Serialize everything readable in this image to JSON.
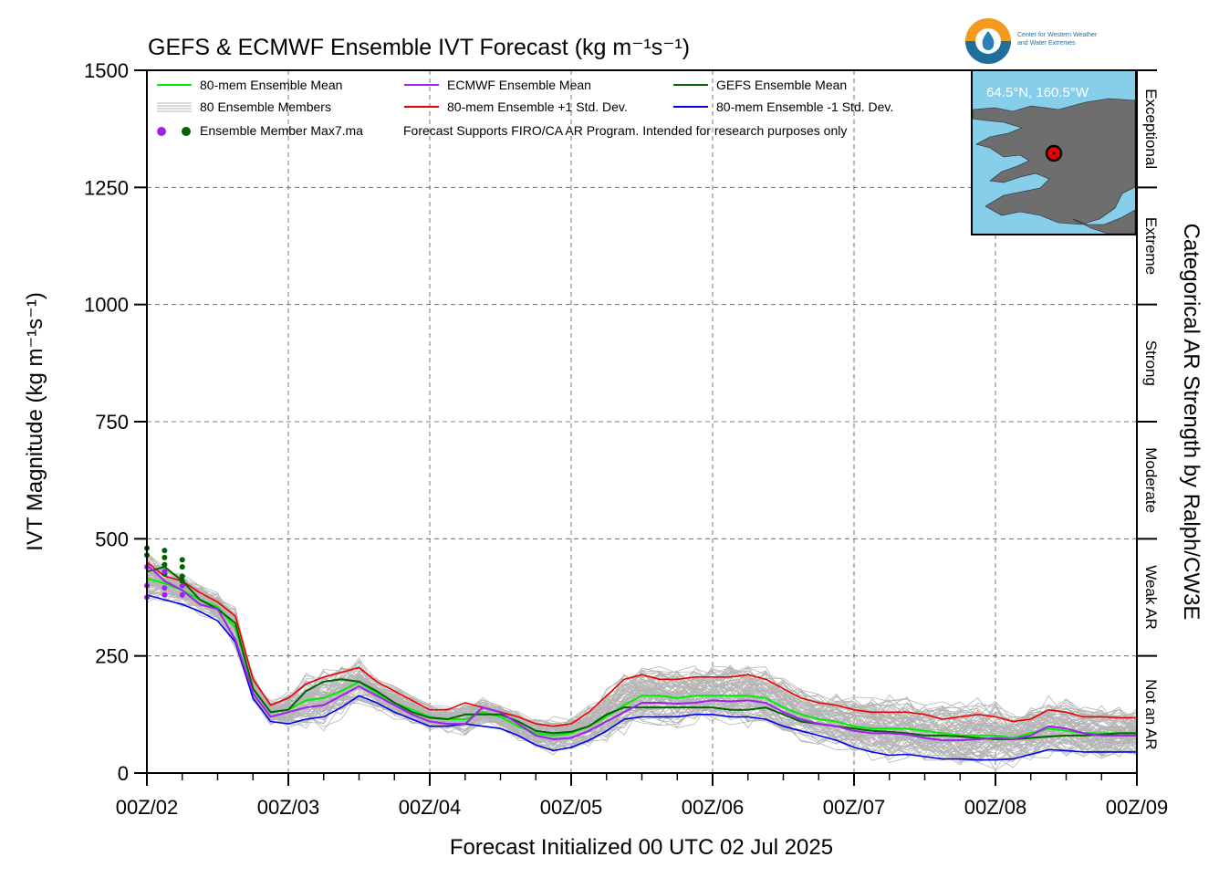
{
  "title": "GEFS & ECMWF Ensemble IVT Forecast (kg m⁻¹s⁻¹)",
  "ylabel": "IVT Magnitude (kg m⁻¹s⁻¹)",
  "xlabel": "Forecast Initialized 00 UTC 02 Jul 2025",
  "right_label": "Categorical AR Strength by Ralph/CW3E",
  "logo": {
    "line1": "Center for Western Weather",
    "line2": "and Water Extremes"
  },
  "inset": {
    "label": "64.5°N, 160.5°W",
    "ocean_color": "#87ceeb",
    "land_color": "#6e6e6e"
  },
  "note": "Forecast Supports FIRO/CA AR Program. Intended for research purposes only",
  "max_label": "Ensemble Member Max7.ma",
  "categories": [
    {
      "label": "Not an AR",
      "range": [
        0,
        250
      ]
    },
    {
      "label": "Weak AR",
      "range": [
        250,
        500
      ]
    },
    {
      "label": "Moderate",
      "range": [
        500,
        750
      ]
    },
    {
      "label": "Strong",
      "range": [
        750,
        1000
      ]
    },
    {
      "label": "Extreme",
      "range": [
        1000,
        1250
      ]
    },
    {
      "label": "Exceptional",
      "range": [
        1250,
        1500
      ]
    }
  ],
  "chart_data": {
    "type": "line",
    "title": "GEFS & ECMWF Ensemble IVT Forecast (kg m⁻¹s⁻¹)",
    "xlabel": "Forecast Initialized 00 UTC 02 Jul 2025",
    "ylabel": "IVT Magnitude (kg m⁻¹s⁻¹)",
    "x_unit": "forecast hour",
    "xlim": [
      0,
      168
    ],
    "ylim": [
      0,
      1500
    ],
    "yticks": [
      0,
      250,
      500,
      750,
      1000,
      1250,
      1500
    ],
    "xticks": [
      {
        "value": 0,
        "label": "00Z/02"
      },
      {
        "value": 24,
        "label": "00Z/03"
      },
      {
        "value": 48,
        "label": "00Z/04"
      },
      {
        "value": 72,
        "label": "00Z/05"
      },
      {
        "value": 96,
        "label": "00Z/06"
      },
      {
        "value": 120,
        "label": "00Z/07"
      },
      {
        "value": 144,
        "label": "00Z/08"
      },
      {
        "value": 168,
        "label": "00Z/09"
      }
    ],
    "grid": true,
    "legend_position": "top-left",
    "x": [
      0,
      3,
      6,
      9,
      12,
      15,
      18,
      21,
      24,
      27,
      30,
      33,
      36,
      39,
      42,
      45,
      48,
      51,
      54,
      57,
      60,
      63,
      66,
      69,
      72,
      75,
      78,
      81,
      84,
      87,
      90,
      93,
      96,
      99,
      102,
      105,
      108,
      111,
      114,
      117,
      120,
      123,
      126,
      129,
      132,
      135,
      138,
      141,
      144,
      147,
      150,
      153,
      156,
      159,
      162,
      165,
      168
    ],
    "series": [
      {
        "name": "80-mem Ensemble Mean",
        "color": "#00ee00",
        "width": 2,
        "values": [
          415,
          405,
          390,
          370,
          355,
          310,
          180,
          130,
          135,
          155,
          160,
          175,
          195,
          170,
          150,
          135,
          120,
          115,
          115,
          130,
          120,
          100,
          85,
          80,
          85,
          100,
          120,
          145,
          165,
          165,
          160,
          165,
          165,
          165,
          165,
          160,
          140,
          125,
          115,
          110,
          100,
          95,
          95,
          95,
          90,
          85,
          80,
          80,
          80,
          75,
          85,
          95,
          90,
          85,
          85,
          85,
          85
        ]
      },
      {
        "name": "ECMWF Ensemble Mean",
        "color": "#a020f0",
        "width": 2,
        "values": [
          445,
          410,
          390,
          360,
          350,
          285,
          170,
          120,
          130,
          140,
          145,
          165,
          185,
          165,
          145,
          125,
          110,
          105,
          105,
          140,
          130,
          105,
          80,
          72,
          75,
          90,
          110,
          130,
          150,
          150,
          148,
          150,
          155,
          153,
          155,
          150,
          130,
          115,
          105,
          100,
          90,
          85,
          85,
          82,
          75,
          70,
          70,
          72,
          75,
          72,
          80,
          100,
          95,
          85,
          80,
          80,
          80
        ]
      },
      {
        "name": "GEFS Ensemble Mean",
        "color": "#006400",
        "width": 2,
        "values": [
          430,
          440,
          410,
          370,
          350,
          320,
          180,
          130,
          135,
          175,
          195,
          200,
          195,
          175,
          150,
          130,
          118,
          115,
          125,
          125,
          125,
          110,
          90,
          85,
          88,
          100,
          125,
          140,
          140,
          140,
          140,
          140,
          140,
          135,
          135,
          140,
          125,
          110,
          105,
          100,
          95,
          90,
          88,
          85,
          80,
          80,
          78,
          75,
          72,
          72,
          75,
          78,
          80,
          80,
          82,
          85,
          85
        ]
      },
      {
        "name": "80-mem Ensemble +1 Std. Dev.",
        "color": "#ee0000",
        "width": 1.6,
        "values": [
          450,
          420,
          410,
          385,
          365,
          335,
          200,
          145,
          160,
          190,
          205,
          215,
          225,
          195,
          175,
          155,
          135,
          135,
          150,
          140,
          130,
          120,
          105,
          100,
          105,
          130,
          165,
          200,
          210,
          200,
          200,
          205,
          205,
          205,
          210,
          200,
          180,
          160,
          150,
          145,
          135,
          130,
          130,
          130,
          125,
          115,
          120,
          125,
          120,
          110,
          115,
          135,
          130,
          120,
          120,
          118,
          118
        ]
      },
      {
        "name": "80-mem Ensemble -1 Std. Dev.",
        "color": "#0000ee",
        "width": 1.6,
        "values": [
          380,
          370,
          360,
          345,
          325,
          280,
          160,
          110,
          105,
          115,
          120,
          140,
          165,
          150,
          130,
          115,
          100,
          100,
          105,
          100,
          95,
          80,
          60,
          48,
          55,
          70,
          90,
          115,
          120,
          120,
          120,
          125,
          125,
          120,
          120,
          115,
          100,
          90,
          80,
          70,
          55,
          45,
          38,
          40,
          35,
          30,
          30,
          28,
          28,
          30,
          40,
          50,
          48,
          45,
          45,
          45,
          45
        ]
      }
    ],
    "members": {
      "name": "80 Ensemble Members",
      "color": "#b4b4b4",
      "count": 80
    },
    "max_points": {
      "name": "Ensemble Member Max7.ma",
      "ecmwf_color": "#a020f0",
      "gefs_color": "#006400",
      "ecmwf": [
        {
          "x": 0,
          "y": 440
        },
        {
          "x": 0,
          "y": 400
        },
        {
          "x": 0,
          "y": 375
        },
        {
          "x": 3,
          "y": 430
        },
        {
          "x": 3,
          "y": 395
        },
        {
          "x": 3,
          "y": 380
        },
        {
          "x": 6,
          "y": 400
        },
        {
          "x": 6,
          "y": 380
        }
      ],
      "gefs": [
        {
          "x": 0,
          "y": 480
        },
        {
          "x": 0,
          "y": 465
        },
        {
          "x": 3,
          "y": 475
        },
        {
          "x": 3,
          "y": 460
        },
        {
          "x": 3,
          "y": 445
        },
        {
          "x": 3,
          "y": 425
        },
        {
          "x": 6,
          "y": 455
        },
        {
          "x": 6,
          "y": 440
        },
        {
          "x": 6,
          "y": 420
        },
        {
          "x": 6,
          "y": 410
        }
      ]
    }
  }
}
